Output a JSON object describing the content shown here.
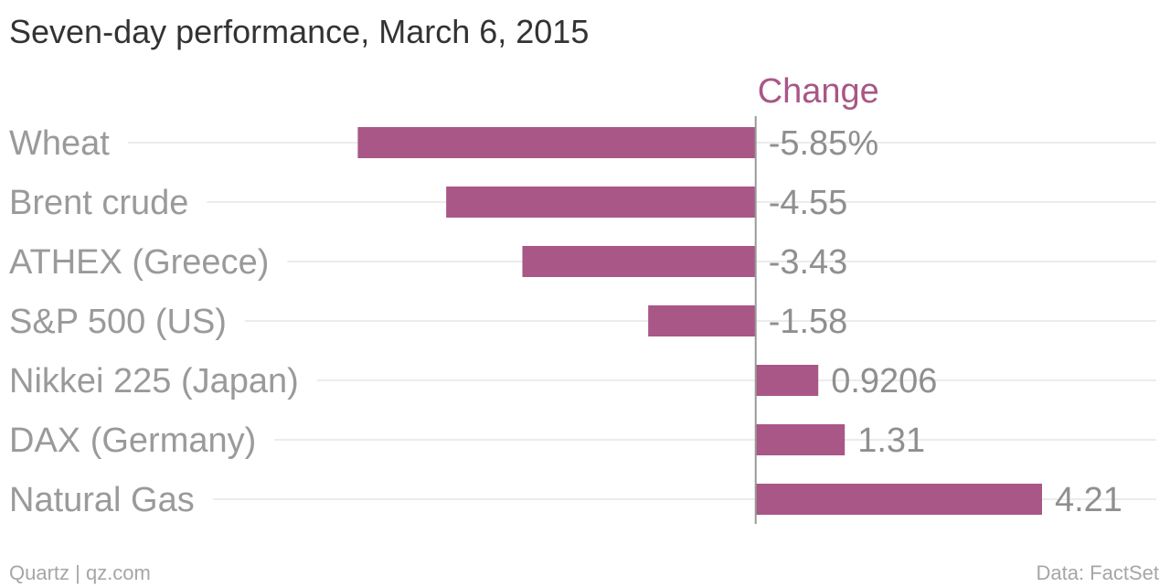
{
  "title": "Seven-day performance, March 6, 2015",
  "footer": {
    "left": "Quartz | qz.com",
    "right": "Data: FactSet"
  },
  "colors": {
    "bar": "#a85786",
    "header": "#a85786",
    "category": "#9a9a9a",
    "value": "#8f8f8f",
    "grid": "#ececec",
    "zero_line": "#999999"
  },
  "chart_data": {
    "type": "bar",
    "orientation": "horizontal",
    "series": [
      {
        "name": "Change",
        "values": [
          -5.85,
          -4.55,
          -3.43,
          -1.58,
          0.9206,
          1.31,
          4.21
        ]
      }
    ],
    "categories": [
      "Wheat",
      "Brent crude",
      "ATHEX (Greece)",
      "S&P 500 (US)",
      "Nikkei 225 (Japan)",
      "DAX (Germany)",
      "Natural Gas"
    ],
    "value_labels": [
      "-5.85%",
      "-4.55",
      "-3.43",
      "-1.58",
      "0.9206",
      "1.31",
      "4.21"
    ],
    "xlim": [
      -11.11,
      5.89
    ],
    "grid": true,
    "legend": "none"
  }
}
